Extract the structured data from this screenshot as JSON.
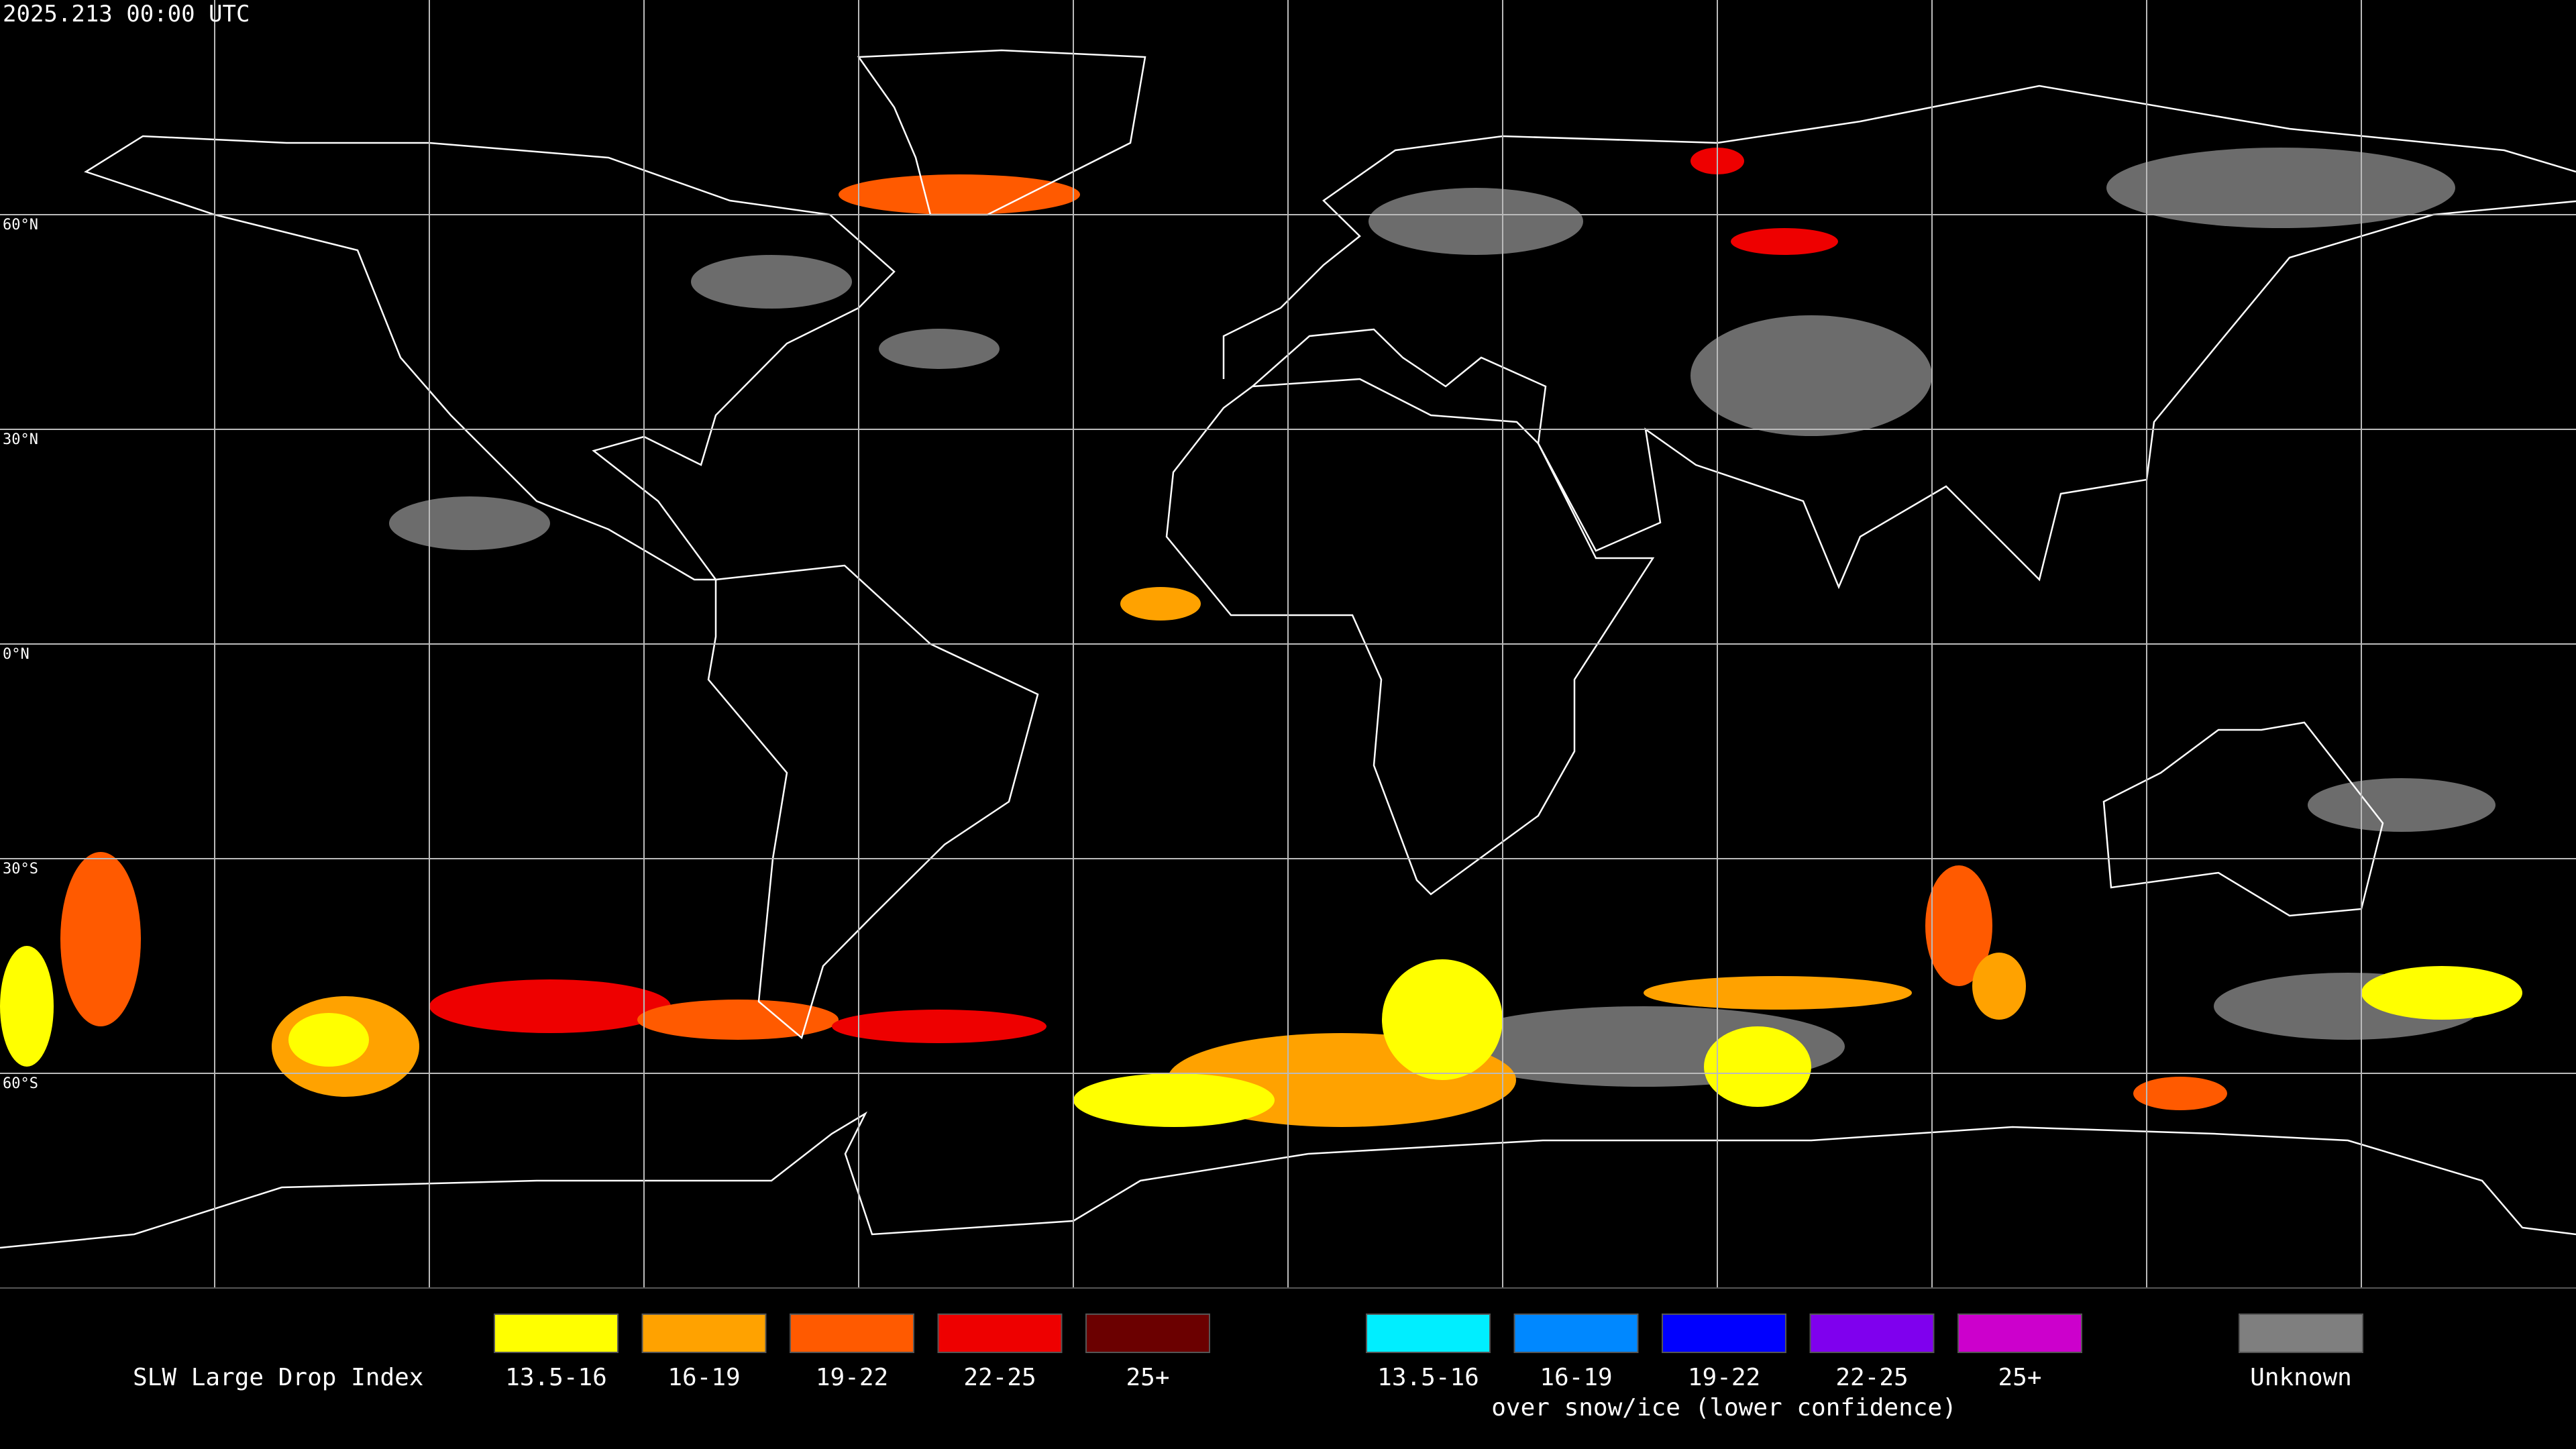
{
  "header": {
    "timestamp": "2025.213 00:00 UTC"
  },
  "grid": {
    "lat_labels": [
      "60°N",
      "30°N",
      "0°N",
      "30°S",
      "60°S"
    ]
  },
  "legend": {
    "title": "SLW Large Drop Index",
    "groups": [
      {
        "items": [
          {
            "label": "13.5-16",
            "color": "#ffff00"
          },
          {
            "label": "16-19",
            "color": "#ffa200"
          },
          {
            "label": "19-22",
            "color": "#ff5a00"
          },
          {
            "label": "22-25",
            "color": "#ee0000"
          },
          {
            "label": "25+",
            "color": "#6b0000"
          }
        ]
      },
      {
        "items": [
          {
            "label": "13.5-16",
            "color": "#00eeff"
          },
          {
            "label": "16-19",
            "color": "#0088ff"
          },
          {
            "label": "19-22",
            "color": "#0000ff"
          },
          {
            "label": "22-25",
            "color": "#7f00ee"
          },
          {
            "label": "25+",
            "color": "#cc00cc"
          }
        ],
        "caption": "over snow/ice (lower confidence)"
      }
    ],
    "unknown": {
      "label": "Unknown",
      "color": "#7f7f7f"
    }
  }
}
